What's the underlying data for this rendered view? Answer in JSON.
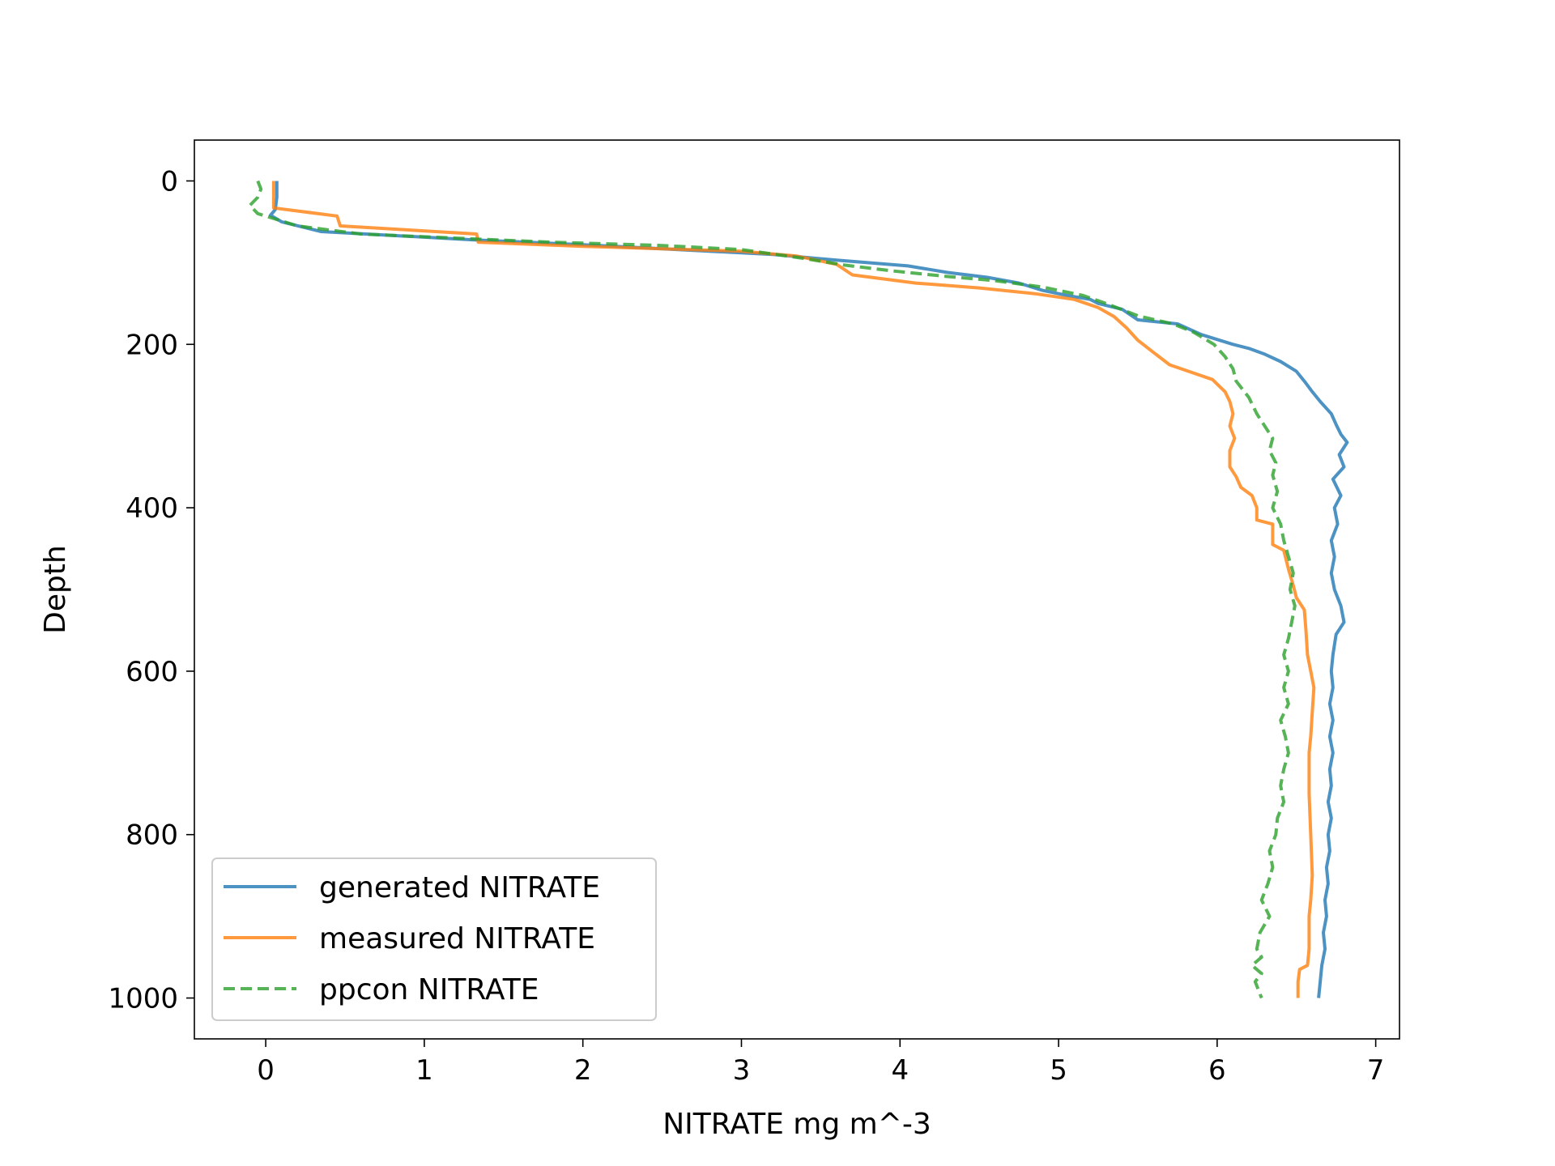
{
  "chart_data": {
    "type": "line",
    "title": "",
    "xlabel": "NITRATE mg m^-3",
    "ylabel": "Depth",
    "xlim": [
      -0.45,
      7.15
    ],
    "ylim": [
      1050,
      -50
    ],
    "y_inverted": true,
    "xticks": [
      0,
      1,
      2,
      3,
      4,
      5,
      6,
      7
    ],
    "yticks": [
      0,
      200,
      400,
      600,
      800,
      1000
    ],
    "grid": false,
    "legend_position": "lower-left",
    "series": [
      {
        "name": "generated NITRATE",
        "color": "#1f77b4",
        "style": "solid",
        "points": [
          [
            0.07,
            0
          ],
          [
            0.07,
            20
          ],
          [
            0.06,
            35
          ],
          [
            0.03,
            42
          ],
          [
            0.1,
            50
          ],
          [
            0.35,
            62
          ],
          [
            1.3,
            72
          ],
          [
            2.0,
            78
          ],
          [
            2.6,
            84
          ],
          [
            3.2,
            90
          ],
          [
            3.6,
            97
          ],
          [
            4.05,
            104
          ],
          [
            4.3,
            112
          ],
          [
            4.55,
            118
          ],
          [
            4.75,
            125
          ],
          [
            4.9,
            134
          ],
          [
            5.05,
            140
          ],
          [
            5.2,
            145
          ],
          [
            5.25,
            150
          ],
          [
            5.4,
            157
          ],
          [
            5.5,
            170
          ],
          [
            5.75,
            175
          ],
          [
            5.9,
            188
          ],
          [
            6.1,
            200
          ],
          [
            6.2,
            205
          ],
          [
            6.3,
            212
          ],
          [
            6.4,
            221
          ],
          [
            6.5,
            233
          ],
          [
            6.55,
            245
          ],
          [
            6.6,
            258
          ],
          [
            6.65,
            270
          ],
          [
            6.72,
            285
          ],
          [
            6.75,
            298
          ],
          [
            6.78,
            310
          ],
          [
            6.82,
            320
          ],
          [
            6.77,
            335
          ],
          [
            6.8,
            350
          ],
          [
            6.73,
            365
          ],
          [
            6.78,
            385
          ],
          [
            6.74,
            400
          ],
          [
            6.76,
            420
          ],
          [
            6.72,
            440
          ],
          [
            6.74,
            460
          ],
          [
            6.72,
            480
          ],
          [
            6.74,
            500
          ],
          [
            6.78,
            520
          ],
          [
            6.8,
            540
          ],
          [
            6.75,
            555
          ],
          [
            6.73,
            580
          ],
          [
            6.72,
            600
          ],
          [
            6.73,
            620
          ],
          [
            6.71,
            640
          ],
          [
            6.73,
            660
          ],
          [
            6.71,
            680
          ],
          [
            6.73,
            700
          ],
          [
            6.71,
            720
          ],
          [
            6.72,
            740
          ],
          [
            6.7,
            760
          ],
          [
            6.72,
            780
          ],
          [
            6.7,
            800
          ],
          [
            6.71,
            820
          ],
          [
            6.69,
            840
          ],
          [
            6.7,
            860
          ],
          [
            6.68,
            880
          ],
          [
            6.69,
            900
          ],
          [
            6.67,
            920
          ],
          [
            6.68,
            940
          ],
          [
            6.66,
            960
          ],
          [
            6.65,
            980
          ],
          [
            6.64,
            1000
          ]
        ]
      },
      {
        "name": "measured NITRATE",
        "color": "#ff7f0e",
        "style": "solid",
        "points": [
          [
            0.05,
            0
          ],
          [
            0.05,
            33
          ],
          [
            0.45,
            43
          ],
          [
            0.47,
            55
          ],
          [
            1.33,
            65
          ],
          [
            1.34,
            75
          ],
          [
            2.0,
            80
          ],
          [
            2.5,
            83
          ],
          [
            3.0,
            86
          ],
          [
            3.35,
            92
          ],
          [
            3.6,
            102
          ],
          [
            3.7,
            115
          ],
          [
            4.1,
            125
          ],
          [
            4.5,
            131
          ],
          [
            4.85,
            138
          ],
          [
            5.1,
            145
          ],
          [
            5.25,
            155
          ],
          [
            5.35,
            166
          ],
          [
            5.43,
            180
          ],
          [
            5.5,
            195
          ],
          [
            5.6,
            210
          ],
          [
            5.7,
            225
          ],
          [
            5.85,
            235
          ],
          [
            5.97,
            243
          ],
          [
            6.05,
            258
          ],
          [
            6.08,
            270
          ],
          [
            6.1,
            285
          ],
          [
            6.08,
            300
          ],
          [
            6.11,
            315
          ],
          [
            6.08,
            330
          ],
          [
            6.08,
            350
          ],
          [
            6.12,
            362
          ],
          [
            6.15,
            375
          ],
          [
            6.22,
            385
          ],
          [
            6.25,
            400
          ],
          [
            6.25,
            415
          ],
          [
            6.35,
            420
          ],
          [
            6.35,
            445
          ],
          [
            6.42,
            452
          ],
          [
            6.45,
            475
          ],
          [
            6.48,
            495
          ],
          [
            6.5,
            510
          ],
          [
            6.55,
            525
          ],
          [
            6.56,
            550
          ],
          [
            6.57,
            580
          ],
          [
            6.59,
            600
          ],
          [
            6.61,
            620
          ],
          [
            6.6,
            650
          ],
          [
            6.59,
            680
          ],
          [
            6.58,
            700
          ],
          [
            6.58,
            750
          ],
          [
            6.59,
            800
          ],
          [
            6.6,
            850
          ],
          [
            6.59,
            880
          ],
          [
            6.58,
            900
          ],
          [
            6.58,
            940
          ],
          [
            6.57,
            960
          ],
          [
            6.52,
            965
          ],
          [
            6.51,
            980
          ],
          [
            6.51,
            1000
          ]
        ]
      },
      {
        "name": "ppcon NITRATE",
        "color": "#2ca02c",
        "style": "dashed",
        "points": [
          [
            -0.05,
            0
          ],
          [
            -0.03,
            10
          ],
          [
            -0.05,
            20
          ],
          [
            -0.1,
            30
          ],
          [
            -0.05,
            40
          ],
          [
            0.05,
            46
          ],
          [
            0.2,
            55
          ],
          [
            0.6,
            65
          ],
          [
            1.2,
            70
          ],
          [
            1.8,
            75
          ],
          [
            2.5,
            79
          ],
          [
            3.0,
            84
          ],
          [
            3.4,
            95
          ],
          [
            3.65,
            103
          ],
          [
            3.95,
            110
          ],
          [
            4.3,
            117
          ],
          [
            4.6,
            122
          ],
          [
            4.9,
            130
          ],
          [
            5.15,
            140
          ],
          [
            5.3,
            150
          ],
          [
            5.5,
            165
          ],
          [
            5.72,
            175
          ],
          [
            5.85,
            185
          ],
          [
            5.98,
            200
          ],
          [
            6.05,
            215
          ],
          [
            6.1,
            230
          ],
          [
            6.12,
            245
          ],
          [
            6.2,
            265
          ],
          [
            6.25,
            285
          ],
          [
            6.3,
            300
          ],
          [
            6.35,
            315
          ],
          [
            6.33,
            330
          ],
          [
            6.37,
            345
          ],
          [
            6.35,
            360
          ],
          [
            6.38,
            380
          ],
          [
            6.35,
            400
          ],
          [
            6.4,
            420
          ],
          [
            6.42,
            440
          ],
          [
            6.45,
            460
          ],
          [
            6.48,
            480
          ],
          [
            6.46,
            500
          ],
          [
            6.49,
            520
          ],
          [
            6.47,
            540
          ],
          [
            6.45,
            560
          ],
          [
            6.42,
            580
          ],
          [
            6.45,
            600
          ],
          [
            6.42,
            620
          ],
          [
            6.45,
            640
          ],
          [
            6.4,
            660
          ],
          [
            6.43,
            680
          ],
          [
            6.45,
            700
          ],
          [
            6.42,
            720
          ],
          [
            6.4,
            740
          ],
          [
            6.42,
            760
          ],
          [
            6.38,
            780
          ],
          [
            6.37,
            800
          ],
          [
            6.33,
            820
          ],
          [
            6.35,
            840
          ],
          [
            6.32,
            860
          ],
          [
            6.28,
            880
          ],
          [
            6.33,
            900
          ],
          [
            6.27,
            920
          ],
          [
            6.25,
            940
          ],
          [
            6.28,
            950
          ],
          [
            6.22,
            960
          ],
          [
            6.28,
            970
          ],
          [
            6.24,
            980
          ],
          [
            6.28,
            1000
          ]
        ]
      }
    ]
  }
}
